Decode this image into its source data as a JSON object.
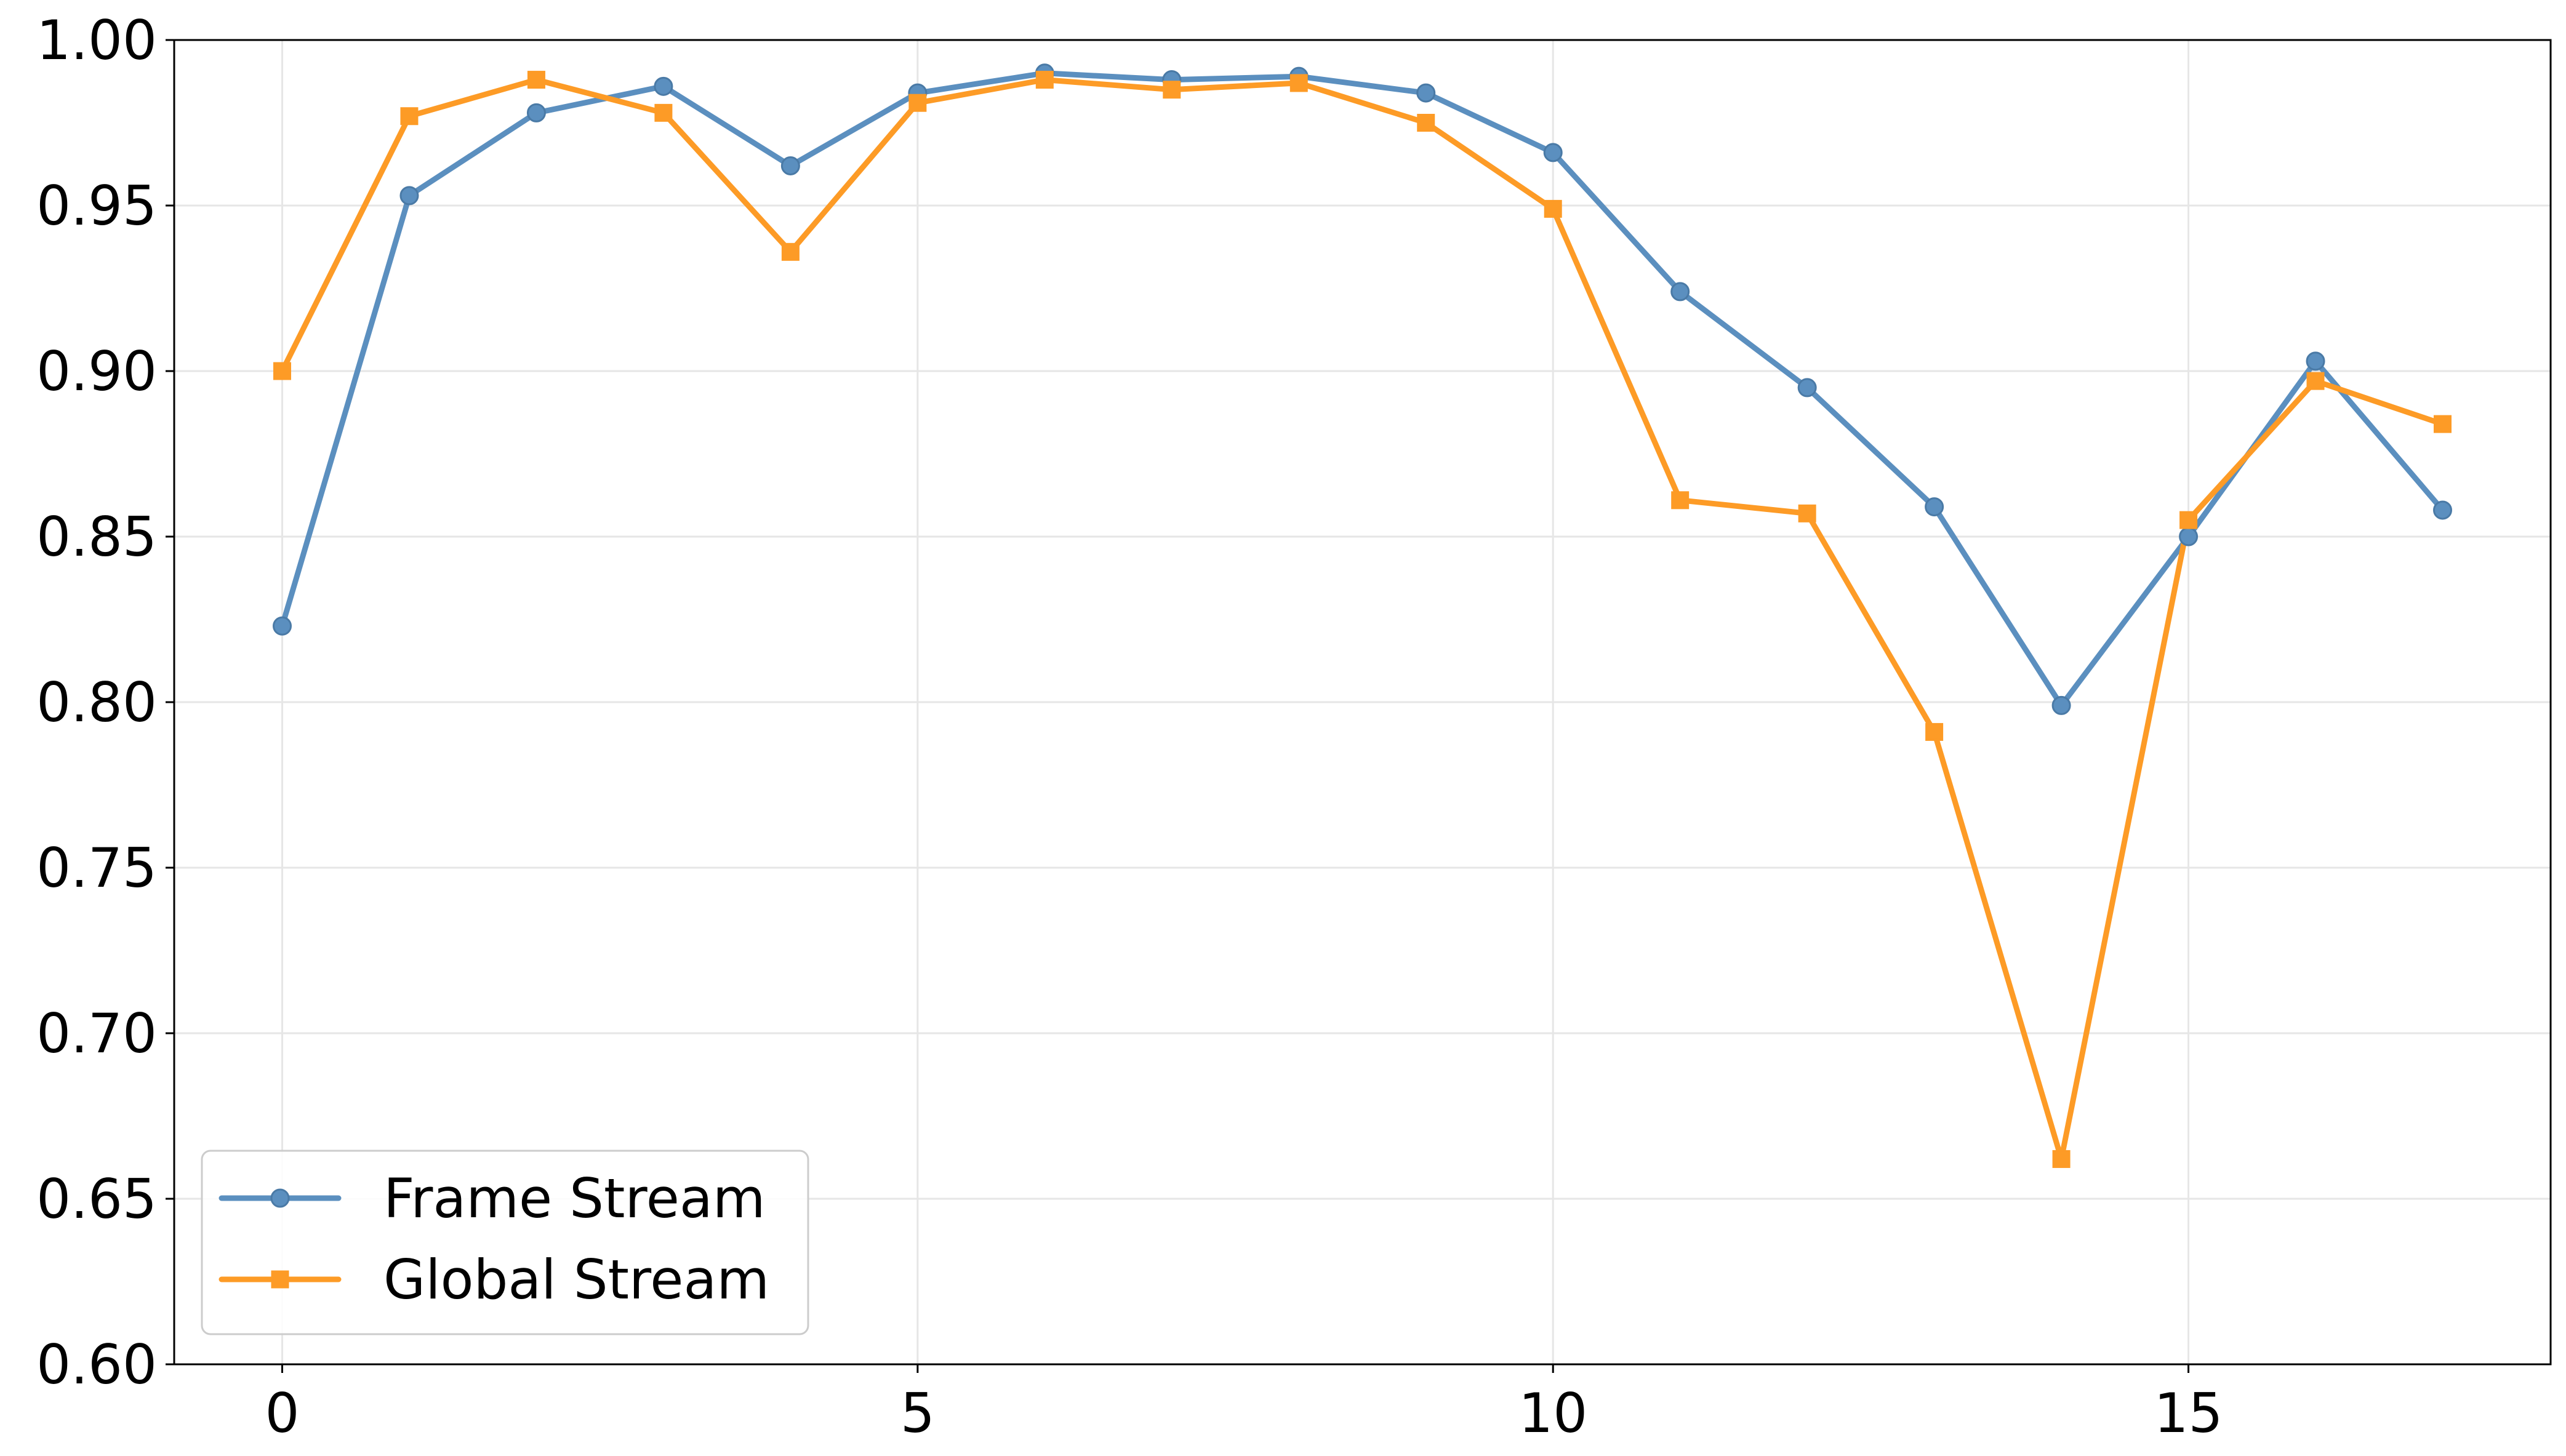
{
  "chart_data": {
    "type": "line",
    "title": "",
    "xlabel": "",
    "ylabel": "",
    "x": [
      0,
      1,
      2,
      3,
      4,
      5,
      6,
      7,
      8,
      9,
      10,
      11,
      12,
      13,
      14,
      15,
      16,
      17
    ],
    "xlim": [
      -0.85,
      17.85
    ],
    "ylim": [
      0.6,
      1.0
    ],
    "xticks": [
      0,
      5,
      10,
      15
    ],
    "xtick_labels": [
      "0",
      "5",
      "10",
      "15"
    ],
    "yticks": [
      0.6,
      0.65,
      0.7,
      0.75,
      0.8,
      0.85,
      0.9,
      0.95,
      1.0
    ],
    "ytick_labels": [
      "0.60",
      "0.65",
      "0.70",
      "0.75",
      "0.80",
      "0.85",
      "0.90",
      "0.95",
      "1.00"
    ],
    "grid": true,
    "legend_position": "lower-left",
    "series": [
      {
        "name": "Frame Stream",
        "color": "#5b8fbf",
        "marker": "circle",
        "values": [
          0.823,
          0.953,
          0.978,
          0.986,
          0.962,
          0.984,
          0.99,
          0.988,
          0.989,
          0.984,
          0.966,
          0.924,
          0.895,
          0.859,
          0.799,
          0.85,
          0.903,
          0.858
        ]
      },
      {
        "name": "Global Stream",
        "color": "#fd9b26",
        "marker": "square",
        "values": [
          0.9,
          0.977,
          0.988,
          0.978,
          0.936,
          0.981,
          0.988,
          0.985,
          0.987,
          0.975,
          0.949,
          0.861,
          0.857,
          0.791,
          0.662,
          0.855,
          0.897,
          0.884
        ]
      }
    ]
  }
}
